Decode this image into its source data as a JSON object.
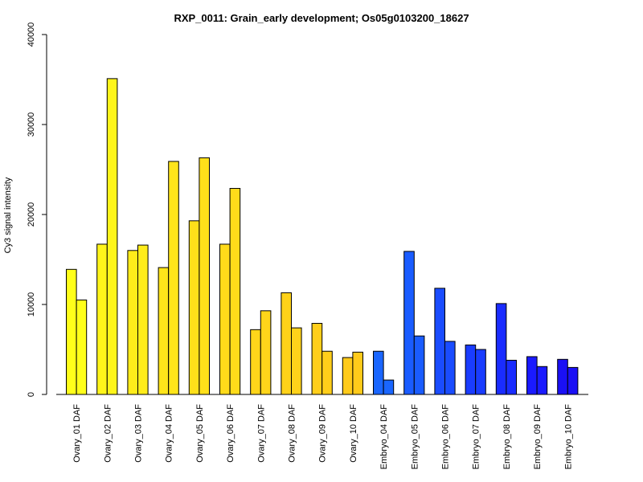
{
  "chart_data": {
    "type": "bar",
    "title": "RXP_0011: Grain_early development; Os05g0103200_18627",
    "xlabel": "",
    "ylabel": "Cy3 signal intensity",
    "ylim": [
      0,
      40000
    ],
    "yticks": [
      "0",
      "10000",
      "20000",
      "30000",
      "40000"
    ],
    "grid": false,
    "categories": [
      "Ovary_01 DAF",
      "Ovary_02 DAF",
      "Ovary_03 DAF",
      "Ovary_04 DAF",
      "Ovary_05 DAF",
      "Ovary_06 DAF",
      "Ovary_07 DAF",
      "Ovary_08 DAF",
      "Ovary_09 DAF",
      "Ovary_10 DAF",
      "Embryo_04 DAF",
      "Embryo_05 DAF",
      "Embryo_06 DAF",
      "Embryo_07 DAF",
      "Embryo_08 DAF",
      "Embryo_09 DAF",
      "Embryo_10 DAF"
    ],
    "series": [
      {
        "values": [
          13900,
          16700,
          16000,
          14100,
          19300,
          16700,
          7200,
          11300,
          7900,
          4100,
          4800,
          15900,
          11800,
          5500,
          10100,
          4200,
          3900
        ]
      },
      {
        "values": [
          10500,
          35100,
          16600,
          25900,
          26300,
          22900,
          9300,
          7400,
          4800,
          4700,
          1600,
          6500,
          5900,
          5000,
          3800,
          3100,
          3000
        ]
      }
    ],
    "bar_colors": [
      "#FFFF1A",
      "#FFF51A",
      "#FFEC1A",
      "#FFE51A",
      "#FFE01A",
      "#FFDB1A",
      "#FFD51A",
      "#FFD21A",
      "#FFCE1A",
      "#FFCA1A",
      "#1A66FF",
      "#1A5CFF",
      "#1A4CFF",
      "#1A3CFF",
      "#1A2CFF",
      "#1A1AFF",
      "#1A10F5"
    ]
  }
}
